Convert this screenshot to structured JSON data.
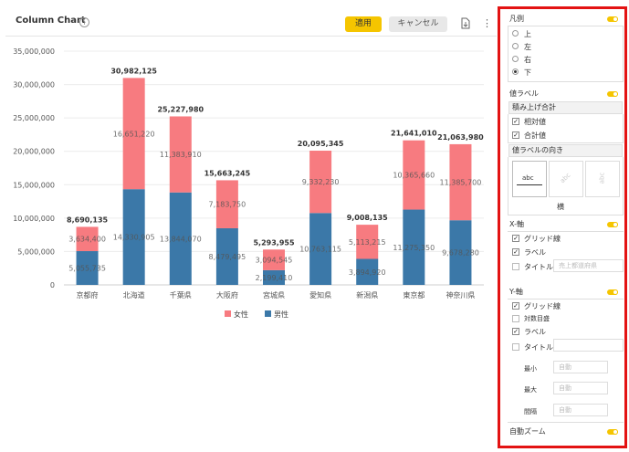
{
  "header": {
    "title": "Column Chart",
    "info_icon": "info-icon",
    "apply_label": "適用",
    "cancel_label": "キャンセル",
    "export_icon": "export-icon",
    "more_icon": "kebab-icon"
  },
  "chart_data": {
    "type": "bar",
    "stacked": true,
    "categories": [
      "京都府",
      "北海道",
      "千葉県",
      "大阪府",
      "宮城県",
      "愛知県",
      "新潟県",
      "東京都",
      "神奈川県"
    ],
    "series": [
      {
        "name": "男性",
        "color": "#3b78a8",
        "values": [
          5055735,
          14330905,
          13844070,
          8479495,
          2199410,
          10763115,
          3894920,
          11275350,
          9678280
        ]
      },
      {
        "name": "女性",
        "color": "#f77b80",
        "values": [
          3634400,
          16651220,
          11383910,
          7183750,
          3094545,
          9332230,
          5113215,
          10365660,
          11385700
        ]
      }
    ],
    "totals": [
      8690135,
      30982125,
      25227980,
      15663245,
      5293955,
      20095345,
      9008135,
      21641010,
      21063980
    ],
    "segment_labels": [
      [
        "5,055,735",
        "3,634,400"
      ],
      [
        "14,330,905",
        "16,651,220"
      ],
      [
        "13,844,070",
        "11,383,910"
      ],
      [
        "8,479,495",
        "7,183,750"
      ],
      [
        "2,199,410",
        "3,094,545"
      ],
      [
        "10,763,115",
        "9,332,230"
      ],
      [
        "3,894,920",
        "5,113,215"
      ],
      [
        "11,275,350",
        "10,365,660"
      ],
      [
        "9,678,280",
        "11,385,700"
      ]
    ],
    "total_labels": [
      "8,690,135",
      "30,982,125",
      "25,227,980",
      "15,663,245",
      "5,293,955",
      "20,095,345",
      "9,008,135",
      "21,641,010",
      "21,063,980"
    ],
    "yticks": [
      "0",
      "5,000,000",
      "10,000,000",
      "15,000,000",
      "20,000,000",
      "25,000,000",
      "30,000,000",
      "35,000,000"
    ],
    "ylim": [
      0,
      35000000
    ],
    "grid": true,
    "legend_position": "bottom",
    "legend": [
      "女性",
      "男性"
    ],
    "title": "",
    "xlabel": "",
    "ylabel": ""
  },
  "panel": {
    "legend_section": "凡例",
    "legend_options": [
      "上",
      "左",
      "右",
      "下"
    ],
    "legend_selected": "下",
    "value_label_section": "値ラベル",
    "stack_total_heading": "積み上げ合計",
    "relative_value": "相対値",
    "total_value": "合計値",
    "orientation_heading": "値ラベルの向き",
    "orientation_sample": "abc",
    "orientation_selected": "横",
    "x_axis_section": "X-軸",
    "x_gridlines": "グリッド線",
    "x_labels": "ラベル",
    "x_title": "タイトル",
    "x_title_placeholder": "売上都道府県",
    "y_axis_section": "Y-軸",
    "y_gridlines": "グリッド線",
    "y_log_scale": "対数目盛",
    "y_labels": "ラベル",
    "y_title": "タイトル",
    "y_min": "最小",
    "y_max": "最大",
    "y_interval": "間隔",
    "auto_placeholder": "自動",
    "auto_zoom": "自動ズーム"
  }
}
